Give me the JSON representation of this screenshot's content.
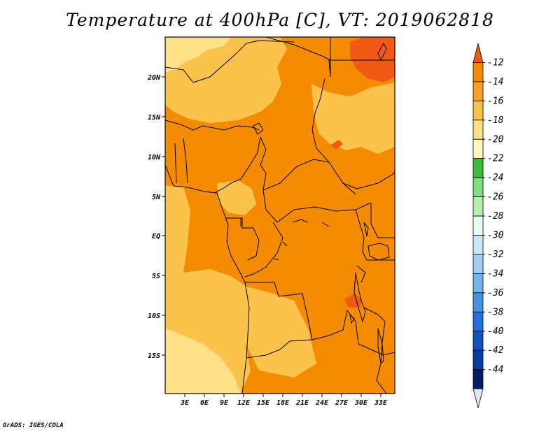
{
  "title": "Temperature at 400hPa [C], VT: 2019062818",
  "credit": "GrADS: IGES/COLA",
  "map": {
    "lat_labels": [
      "20N",
      "15N",
      "10N",
      "5N",
      "EQ",
      "5S",
      "10S",
      "15S"
    ],
    "lon_labels": [
      "3E",
      "6E",
      "9E",
      "12E",
      "15E",
      "18E",
      "21E",
      "24E",
      "27E",
      "30E",
      "33E"
    ]
  },
  "colorbar": {
    "labels": [
      "-12",
      "-14",
      "-16",
      "-18",
      "-20",
      "-22",
      "-24",
      "-26",
      "-28",
      "-30",
      "-32",
      "-34",
      "-36",
      "-38",
      "-40",
      "-42",
      "-44"
    ],
    "colors": [
      "#f05a14",
      "#f58b00",
      "#f7a021",
      "#fbc34b",
      "#fde088",
      "#fff6c0",
      "#3bbf3b",
      "#7ee07e",
      "#b6f0b0",
      "#e8fbf6",
      "#c8e8f8",
      "#a0d0f4",
      "#72b4ec",
      "#4592e0",
      "#2470d8",
      "#0f52c0",
      "#083ca2",
      "#061a66",
      "#e0e4f8"
    ]
  },
  "field_colors": {
    "pale": "#fde088",
    "light": "#fbc34b",
    "mid": "#f7a021",
    "dark": "#f58b00",
    "hot": "#f05a14"
  }
}
